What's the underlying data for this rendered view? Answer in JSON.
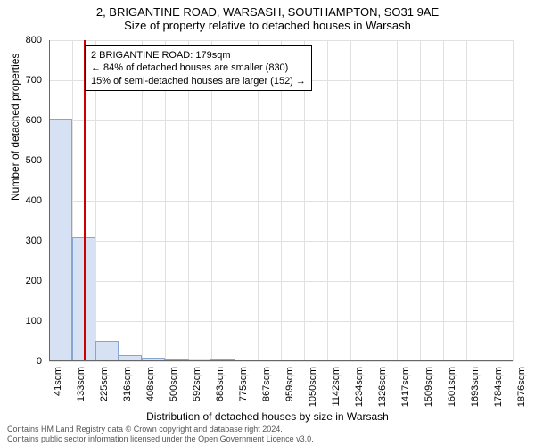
{
  "title_main": "2, BRIGANTINE ROAD, WARSASH, SOUTHAMPTON, SO31 9AE",
  "title_sub": "Size of property relative to detached houses in Warsash",
  "ylabel": "Number of detached properties",
  "xlabel": "Distribution of detached houses by size in Warsash",
  "chart": {
    "type": "histogram",
    "xlim": [
      41,
      1876
    ],
    "ylim": [
      0,
      800
    ],
    "ytick_step": 100,
    "yticks": [
      0,
      100,
      200,
      300,
      400,
      500,
      600,
      700,
      800
    ],
    "xticks": [
      41,
      133,
      225,
      316,
      408,
      500,
      592,
      683,
      775,
      867,
      959,
      1050,
      1142,
      1234,
      1326,
      1417,
      1509,
      1601,
      1693,
      1784,
      1876
    ],
    "xtick_suffix": "sqm",
    "bars": [
      {
        "x0": 41,
        "x1": 133,
        "value": 605
      },
      {
        "x0": 133,
        "x1": 225,
        "value": 310
      },
      {
        "x0": 225,
        "x1": 316,
        "value": 52
      },
      {
        "x0": 316,
        "x1": 408,
        "value": 15
      },
      {
        "x0": 408,
        "x1": 500,
        "value": 10
      },
      {
        "x0": 500,
        "x1": 592,
        "value": 3
      },
      {
        "x0": 592,
        "x1": 683,
        "value": 6
      },
      {
        "x0": 683,
        "x1": 775,
        "value": 2
      }
    ],
    "bar_fill": "#d6e2f3",
    "bar_stroke": "#88a4d0",
    "grid_color": "#e0e0e0",
    "background_color": "#ffffff",
    "marker": {
      "x": 179,
      "color": "#cc0000"
    }
  },
  "annotation": {
    "line1": "2 BRIGANTINE ROAD: 179sqm",
    "line2": "← 84% of detached houses are smaller (830)",
    "line3": "15% of semi-detached houses are larger (152) →"
  },
  "footer": {
    "line1": "Contains HM Land Registry data © Crown copyright and database right 2024.",
    "line2": "Contains public sector information licensed under the Open Government Licence v3.0."
  }
}
